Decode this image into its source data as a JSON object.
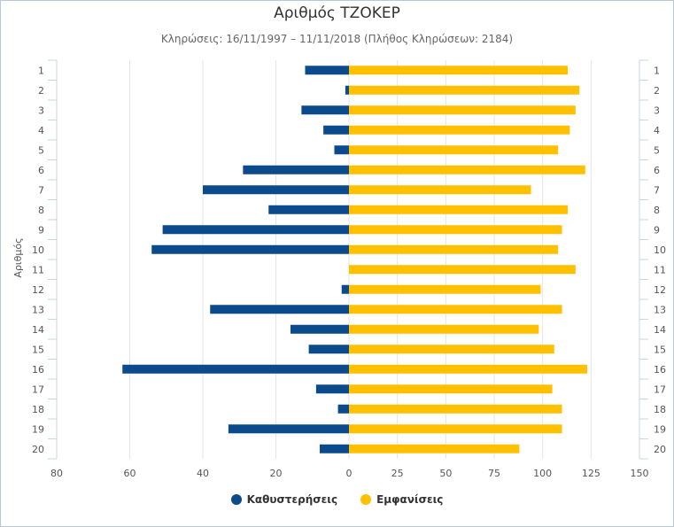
{
  "chart_data": {
    "type": "bar",
    "orientation": "horizontal",
    "title": "Αριθμός ΤΖΟΚΕΡ",
    "subtitle": "Κληρώσεις: 16/11/1997 – 11/11/2018 (Πλήθος Κληρώσεων: 2184)",
    "ylabel": "Αριθμός",
    "categories": [
      "1",
      "2",
      "3",
      "4",
      "5",
      "6",
      "7",
      "8",
      "9",
      "10",
      "11",
      "12",
      "13",
      "14",
      "15",
      "16",
      "17",
      "18",
      "19",
      "20"
    ],
    "left_axis": {
      "ticks": [
        "80",
        "60",
        "40",
        "20",
        "0"
      ],
      "range": [
        0,
        80
      ],
      "reversed": true
    },
    "right_axis": {
      "ticks": [
        "0",
        "25",
        "50",
        "75",
        "100",
        "125",
        "150"
      ],
      "range": [
        0,
        150
      ]
    },
    "series": [
      {
        "name": "Καθυστερήσεις",
        "color": "#0b4a8b",
        "axis": "left",
        "values": [
          12,
          1,
          13,
          7,
          4,
          29,
          40,
          22,
          51,
          54,
          0,
          2,
          38,
          16,
          11,
          62,
          9,
          3,
          33,
          8
        ]
      },
      {
        "name": "Εμφανίσεις",
        "color": "#ffc000",
        "axis": "right",
        "values": [
          113,
          119,
          117,
          114,
          108,
          122,
          94,
          113,
          110,
          108,
          117,
          99,
          110,
          98,
          106,
          123,
          105,
          110,
          110,
          88
        ]
      }
    ],
    "grid": true,
    "legend_position": "bottom"
  }
}
